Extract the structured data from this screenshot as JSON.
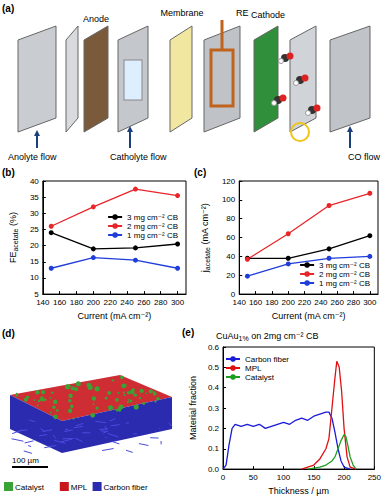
{
  "schematic": {
    "panel_label": "(a)",
    "labels": {
      "anode": "Anode",
      "membrane": "Membrane",
      "re": "RE",
      "cathode": "Cathode",
      "anolyte": "Anolyte flow",
      "catholyte": "Catholyte flow",
      "co": "CO flow"
    }
  },
  "tomography": {
    "panel_label": "(d)",
    "scale_bar": "100 µm",
    "legend": [
      {
        "name": "Catalyst",
        "color": "#3aa335"
      },
      {
        "name": "MPL",
        "color": "#c8161d"
      },
      {
        "name": "Carbon fiber",
        "color": "#2b2bb0"
      }
    ]
  },
  "chart_data": [
    {
      "type": "line",
      "panel_label": "(b)",
      "xlabel": "Current (mA cm⁻²)",
      "ylabel": {
        "main": "FE",
        "sub": "acetate",
        "unit": " (%)"
      },
      "x": [
        150,
        200,
        250,
        300
      ],
      "xlim": [
        140,
        310
      ],
      "xticks": [
        140,
        160,
        180,
        200,
        220,
        240,
        260,
        280,
        300
      ],
      "ylim": [
        5,
        40
      ],
      "yticks": [
        5,
        10,
        15,
        20,
        25,
        30,
        35,
        40
      ],
      "marker": "circle",
      "legend": "center right",
      "series": [
        {
          "name": "3 mg cm⁻² CB",
          "color": "#000000",
          "values": [
            24,
            19,
            19.3,
            20.5
          ]
        },
        {
          "name": "2 mg cm⁻² CB",
          "color": "#e8262a",
          "values": [
            26,
            32,
            37.5,
            35.5
          ]
        },
        {
          "name": "1 mg cm⁻² CB",
          "color": "#1f3ddb",
          "values": [
            13,
            16.3,
            15.5,
            13
          ]
        }
      ]
    },
    {
      "type": "line",
      "panel_label": "(c)",
      "xlabel": "Current (mA cm⁻²)",
      "ylabel": {
        "main": "j",
        "sub": "acetate",
        "unit": " (mA cm⁻²)"
      },
      "x": [
        150,
        200,
        250,
        300
      ],
      "xlim": [
        140,
        310
      ],
      "xticks": [
        140,
        160,
        180,
        200,
        220,
        240,
        260,
        280,
        300
      ],
      "ylim": [
        0,
        120
      ],
      "yticks": [
        0,
        20,
        40,
        60,
        80,
        100,
        120
      ],
      "marker": "circle",
      "legend": "lower right",
      "series": [
        {
          "name": "3 mg cm⁻² CB",
          "color": "#000000",
          "values": [
            38,
            38,
            48,
            62
          ]
        },
        {
          "name": "2 mg cm⁻² CB",
          "color": "#e8262a",
          "values": [
            37,
            64,
            94,
            107
          ]
        },
        {
          "name": "1 mg cm⁻² CB",
          "color": "#1f3ddb",
          "values": [
            19,
            32,
            38,
            40
          ]
        }
      ]
    },
    {
      "type": "line",
      "panel_label": "(e)",
      "title": {
        "main": "CuAu",
        "sub": "1%",
        "unit": " on 2mg cm⁻² CB"
      },
      "xlabel": "Thickness / µm",
      "ylabel": "Material fraction",
      "xlim": [
        0,
        250
      ],
      "xticks": [
        0,
        50,
        100,
        150,
        200,
        250
      ],
      "ylim": [
        0,
        0.6
      ],
      "yticks": [
        {
          "value": 0,
          "label": "0.0"
        },
        {
          "value": 0.1,
          "label": "0.1"
        },
        {
          "value": 0.2,
          "label": "0.2"
        },
        {
          "value": 0.3,
          "label": "0.3"
        },
        {
          "value": 0.4,
          "label": "0.4"
        },
        {
          "value": 0.5,
          "label": "0.5"
        },
        {
          "value": 0.6,
          "label": "0.6"
        }
      ],
      "marker": "none",
      "legend": "upper left",
      "series": [
        {
          "name": "Carbon fiber",
          "color": "#1a1adb",
          "x": [
            0,
            5,
            10,
            15,
            20,
            30,
            40,
            50,
            60,
            70,
            80,
            90,
            100,
            110,
            120,
            130,
            140,
            150,
            160,
            170,
            175,
            180,
            185,
            190,
            195,
            200,
            210
          ],
          "values": [
            0,
            0.02,
            0.12,
            0.2,
            0.22,
            0.21,
            0.22,
            0.21,
            0.22,
            0.2,
            0.21,
            0.22,
            0.23,
            0.22,
            0.24,
            0.25,
            0.24,
            0.26,
            0.27,
            0.28,
            0.28,
            0.25,
            0.18,
            0.1,
            0.04,
            0.01,
            0
          ]
        },
        {
          "name": "MPL",
          "color": "#e01010",
          "x": [
            130,
            140,
            150,
            160,
            170,
            175,
            180,
            185,
            188,
            192,
            196,
            200,
            205,
            210,
            220
          ],
          "values": [
            0,
            0.01,
            0.02,
            0.05,
            0.1,
            0.15,
            0.3,
            0.45,
            0.53,
            0.5,
            0.38,
            0.2,
            0.06,
            0.01,
            0
          ]
        },
        {
          "name": "Catalyst",
          "color": "#1e9e1e",
          "x": [
            140,
            150,
            160,
            170,
            180,
            185,
            190,
            195,
            200,
            203,
            206,
            210,
            215,
            220
          ],
          "values": [
            0,
            0.005,
            0.01,
            0.02,
            0.04,
            0.06,
            0.1,
            0.14,
            0.17,
            0.16,
            0.12,
            0.06,
            0.02,
            0
          ]
        }
      ]
    }
  ]
}
